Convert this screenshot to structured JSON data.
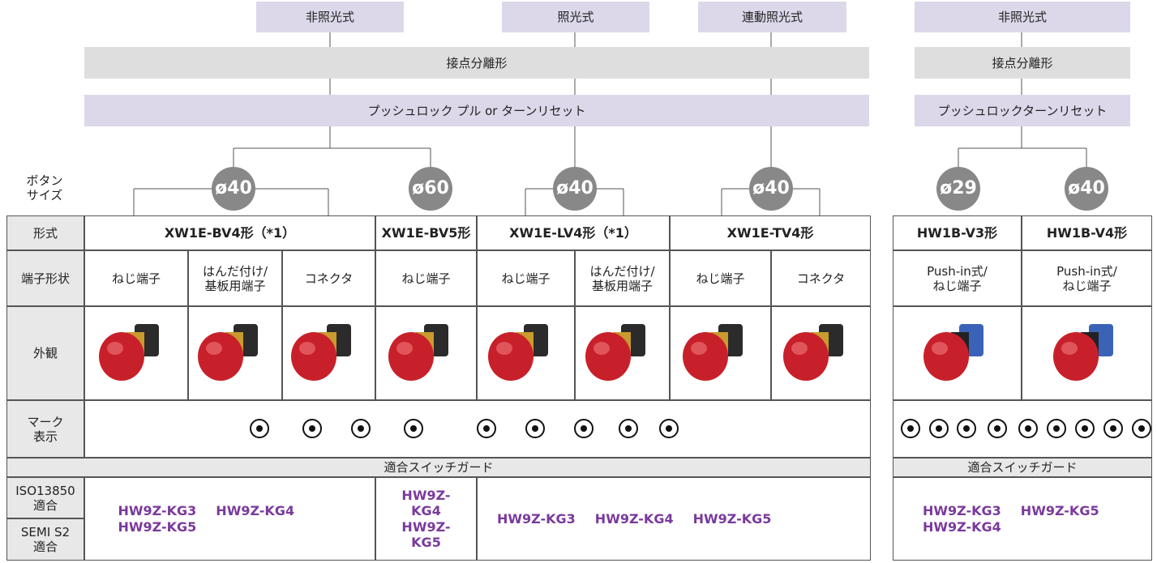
{
  "left": {
    "top_headers": [
      "非照光式",
      "照光式",
      "連動照光式"
    ],
    "contact": "接点分離形",
    "reset": "プッシュロック プル or ターンリセット",
    "button_size_label": "ボタン\nサイズ",
    "sizes": [
      "ø40",
      "ø60",
      "ø40",
      "ø40"
    ],
    "table": {
      "row_labels": [
        "形式",
        "端子形状",
        "外観",
        "マーク\n表示"
      ],
      "models": [
        "XW1E-BV4形（*1）",
        "XW1E-BV5形",
        "XW1E-LV4形（*1）",
        "XW1E-TV4形"
      ],
      "terminals": [
        "ねじ端子",
        "はんだ付け/\n基板用端子",
        "コネクタ",
        "ねじ端子",
        "ねじ端子",
        "はんだ付け/\n基板用端子",
        "ねじ端子",
        "コネクタ"
      ],
      "guard_header": "適合スイッチガード",
      "iso": "ISO13850\n適合",
      "semi": "SEMI S2\n適合",
      "guards": [
        [
          "HW9Z-KG3",
          "HW9Z-KG4",
          "HW9Z-KG5"
        ],
        [
          "HW9Z-KG4",
          "HW9Z-KG5"
        ],
        [
          "HW9Z-KG3",
          "HW9Z-KG4",
          "HW9Z-KG5"
        ]
      ]
    }
  },
  "right": {
    "top_header": "非照光式",
    "contact": "接点分離形",
    "reset": "プッシュロックターンリセット",
    "sizes": [
      "ø29",
      "ø40"
    ],
    "table": {
      "models": [
        "HW1B-V3形",
        "HW1B-V4形"
      ],
      "terminals": [
        "Push-in式/\nねじ端子",
        "Push-in式/\nねじ端子"
      ],
      "guard_header": "適合スイッチガード",
      "guards": [
        "HW9Z-KG3",
        "HW9Z-KG5",
        "HW9Z-KG4"
      ]
    }
  }
}
